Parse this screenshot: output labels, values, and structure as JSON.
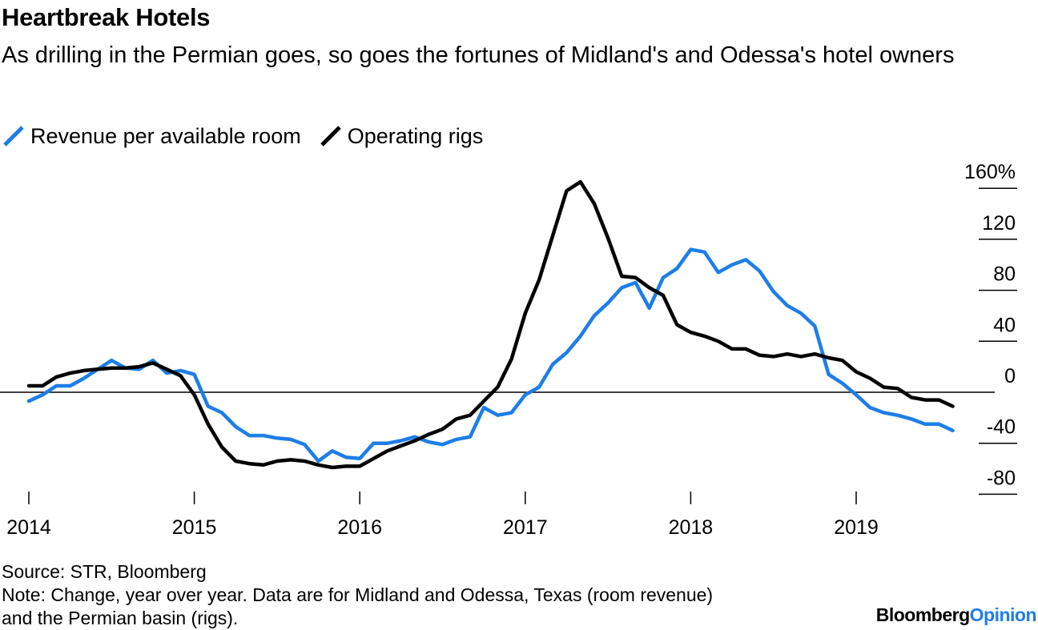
{
  "chart_data": {
    "type": "line",
    "title": "Heartbreak Hotels",
    "subtitle": "As drilling in the Permian goes, so goes the fortunes of Midland's and Odessa's hotel owners",
    "x_ticks": [
      "2014",
      "2015",
      "2016",
      "2017",
      "2018",
      "2019"
    ],
    "y_ticks": [
      160,
      120,
      80,
      40,
      0,
      -40,
      -80
    ],
    "y_tick_labels": [
      "160%",
      "120",
      "80",
      "40",
      "0",
      "-40",
      "-80"
    ],
    "ylim": [
      -80,
      160
    ],
    "xlim": [
      "2014-01",
      "2019-08"
    ],
    "legend_position": "top-left",
    "grid": false,
    "zero_line": true,
    "series": [
      {
        "name": "Revenue per available room",
        "color": "#1d7ee8",
        "points": [
          [
            "2014-01",
            -7
          ],
          [
            "2014-02",
            -2
          ],
          [
            "2014-03",
            5
          ],
          [
            "2014-04",
            5
          ],
          [
            "2014-05",
            11
          ],
          [
            "2014-06",
            18
          ],
          [
            "2014-07",
            25
          ],
          [
            "2014-08",
            19
          ],
          [
            "2014-09",
            18
          ],
          [
            "2014-10",
            25
          ],
          [
            "2014-11",
            15
          ],
          [
            "2014-12",
            17
          ],
          [
            "2015-01",
            14
          ],
          [
            "2015-02",
            -11
          ],
          [
            "2015-03",
            -16
          ],
          [
            "2015-04",
            -27
          ],
          [
            "2015-05",
            -34
          ],
          [
            "2015-06",
            -34
          ],
          [
            "2015-07",
            -36
          ],
          [
            "2015-08",
            -37
          ],
          [
            "2015-09",
            -41
          ],
          [
            "2015-10",
            -54
          ],
          [
            "2015-11",
            -46
          ],
          [
            "2015-12",
            -51
          ],
          [
            "2016-01",
            -52
          ],
          [
            "2016-02",
            -40
          ],
          [
            "2016-03",
            -40
          ],
          [
            "2016-04",
            -38
          ],
          [
            "2016-05",
            -35
          ],
          [
            "2016-06",
            -39
          ],
          [
            "2016-07",
            -41
          ],
          [
            "2016-08",
            -37
          ],
          [
            "2016-09",
            -35
          ],
          [
            "2016-10",
            -12
          ],
          [
            "2016-11",
            -18
          ],
          [
            "2016-12",
            -16
          ],
          [
            "2017-01",
            -2
          ],
          [
            "2017-02",
            4
          ],
          [
            "2017-03",
            22
          ],
          [
            "2017-04",
            31
          ],
          [
            "2017-05",
            44
          ],
          [
            "2017-06",
            60
          ],
          [
            "2017-07",
            70
          ],
          [
            "2017-08",
            82
          ],
          [
            "2017-09",
            86
          ],
          [
            "2017-10",
            66
          ],
          [
            "2017-11",
            90
          ],
          [
            "2017-12",
            97
          ],
          [
            "2018-01",
            112
          ],
          [
            "2018-02",
            110
          ],
          [
            "2018-03",
            94
          ],
          [
            "2018-04",
            100
          ],
          [
            "2018-05",
            104
          ],
          [
            "2018-06",
            95
          ],
          [
            "2018-07",
            79
          ],
          [
            "2018-08",
            68
          ],
          [
            "2018-09",
            62
          ],
          [
            "2018-10",
            52
          ],
          [
            "2018-11",
            14
          ],
          [
            "2018-12",
            7
          ],
          [
            "2019-01",
            -2
          ],
          [
            "2019-02",
            -12
          ],
          [
            "2019-03",
            -16
          ],
          [
            "2019-04",
            -18
          ],
          [
            "2019-05",
            -21
          ],
          [
            "2019-06",
            -25
          ],
          [
            "2019-07",
            -25
          ],
          [
            "2019-08",
            -30
          ]
        ]
      },
      {
        "name": "Operating rigs",
        "color": "#000000",
        "points": [
          [
            "2014-01",
            5
          ],
          [
            "2014-02",
            5
          ],
          [
            "2014-03",
            12
          ],
          [
            "2014-04",
            15
          ],
          [
            "2014-05",
            17
          ],
          [
            "2014-06",
            18
          ],
          [
            "2014-07",
            19
          ],
          [
            "2014-08",
            19
          ],
          [
            "2014-09",
            20
          ],
          [
            "2014-10",
            23
          ],
          [
            "2014-11",
            18
          ],
          [
            "2014-12",
            13
          ],
          [
            "2015-01",
            -2
          ],
          [
            "2015-02",
            -25
          ],
          [
            "2015-03",
            -43
          ],
          [
            "2015-04",
            -54
          ],
          [
            "2015-05",
            -56
          ],
          [
            "2015-06",
            -57
          ],
          [
            "2015-07",
            -54
          ],
          [
            "2015-08",
            -53
          ],
          [
            "2015-09",
            -54
          ],
          [
            "2015-10",
            -57
          ],
          [
            "2015-11",
            -59
          ],
          [
            "2015-12",
            -58
          ],
          [
            "2016-01",
            -58
          ],
          [
            "2016-02",
            -52
          ],
          [
            "2016-03",
            -46
          ],
          [
            "2016-04",
            -42
          ],
          [
            "2016-05",
            -38
          ],
          [
            "2016-06",
            -33
          ],
          [
            "2016-07",
            -29
          ],
          [
            "2016-08",
            -21
          ],
          [
            "2016-09",
            -18
          ],
          [
            "2016-10",
            -7
          ],
          [
            "2016-11",
            4
          ],
          [
            "2016-12",
            26
          ],
          [
            "2017-01",
            62
          ],
          [
            "2017-02",
            88
          ],
          [
            "2017-03",
            123
          ],
          [
            "2017-04",
            158
          ],
          [
            "2017-05",
            165
          ],
          [
            "2017-06",
            148
          ],
          [
            "2017-07",
            121
          ],
          [
            "2017-08",
            91
          ],
          [
            "2017-09",
            90
          ],
          [
            "2017-10",
            82
          ],
          [
            "2017-11",
            76
          ],
          [
            "2017-12",
            53
          ],
          [
            "2018-01",
            47
          ],
          [
            "2018-02",
            44
          ],
          [
            "2018-03",
            40
          ],
          [
            "2018-04",
            34
          ],
          [
            "2018-05",
            34
          ],
          [
            "2018-06",
            29
          ],
          [
            "2018-07",
            28
          ],
          [
            "2018-08",
            30
          ],
          [
            "2018-09",
            28
          ],
          [
            "2018-10",
            30
          ],
          [
            "2018-11",
            27
          ],
          [
            "2018-12",
            25
          ],
          [
            "2019-01",
            16
          ],
          [
            "2019-02",
            11
          ],
          [
            "2019-03",
            4
          ],
          [
            "2019-04",
            3
          ],
          [
            "2019-05",
            -4
          ],
          [
            "2019-06",
            -6
          ],
          [
            "2019-07",
            -6
          ],
          [
            "2019-08",
            -11
          ]
        ]
      }
    ]
  },
  "footer": {
    "source": "Source: STR, Bloomberg",
    "note_line1": "Note: Change, year over year. Data are for Midland and Odessa, Texas (room revenue)",
    "note_line2": "and the Permian basin (rigs)."
  },
  "brand": {
    "part1": "Bloomberg",
    "part2": "Opinion"
  }
}
